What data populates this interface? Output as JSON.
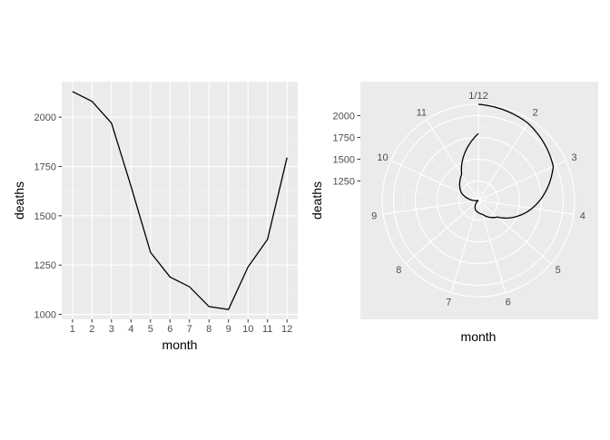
{
  "colors": {
    "panel_bg": "#ebebeb",
    "grid_major": "#ffffff",
    "grid_minor": "#f2f2f2",
    "line": "#000000",
    "tick_text": "#4d4d4d",
    "tick_mark": "#333333"
  },
  "chart_data": [
    {
      "type": "line",
      "coord": "cartesian",
      "x": [
        1,
        2,
        3,
        4,
        5,
        6,
        7,
        8,
        9,
        10,
        11,
        12
      ],
      "values": [
        2130,
        2080,
        1970,
        1650,
        1315,
        1190,
        1140,
        1040,
        1025,
        1240,
        1380,
        1795
      ],
      "xlabel": "month",
      "ylabel": "deaths",
      "xticks": [
        "1",
        "2",
        "3",
        "4",
        "5",
        "6",
        "7",
        "8",
        "9",
        "10",
        "11",
        "12"
      ],
      "yticks": [
        "1000",
        "1250",
        "1500",
        "1750",
        "2000"
      ],
      "xlim": [
        0.45,
        12.55
      ],
      "ylim": [
        975,
        2180
      ],
      "grid": true
    },
    {
      "type": "line",
      "coord": "polar",
      "x": [
        1,
        2,
        3,
        4,
        5,
        6,
        7,
        8,
        9,
        10,
        11,
        12
      ],
      "values": [
        2130,
        2080,
        1970,
        1650,
        1315,
        1190,
        1140,
        1040,
        1025,
        1240,
        1380,
        1795
      ],
      "xlabel": "month",
      "ylabel": "deaths",
      "theta_ticks": [
        "1/12",
        "2",
        "3",
        "4",
        "5",
        "6",
        "7",
        "8",
        "9",
        "10",
        "11"
      ],
      "radial_ticks": [
        "1250",
        "1500",
        "1750",
        "2000"
      ],
      "radial_tick_values": [
        1250,
        1500,
        1750,
        2000
      ],
      "rlim": [
        1025,
        2130
      ],
      "grid": true
    }
  ]
}
